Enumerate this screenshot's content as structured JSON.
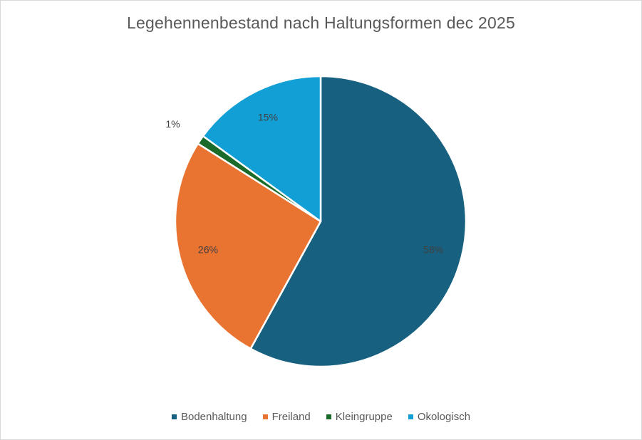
{
  "chart_data": {
    "type": "pie",
    "title": "Legehennenbestand nach Haltungsformen dec 2025",
    "slices": [
      {
        "name": "Bodenhaltung",
        "value": 58,
        "label": "58%",
        "color": "#17607f"
      },
      {
        "name": "Freiland",
        "value": 26,
        "label": "26%",
        "color": "#e97331"
      },
      {
        "name": "Kleingruppe",
        "value": 1,
        "label": "1%",
        "color": "#1a6b29"
      },
      {
        "name": "Okologisch",
        "value": 15,
        "label": "15%",
        "color": "#129fd6"
      }
    ],
    "legend": {
      "position": "bottom"
    }
  }
}
